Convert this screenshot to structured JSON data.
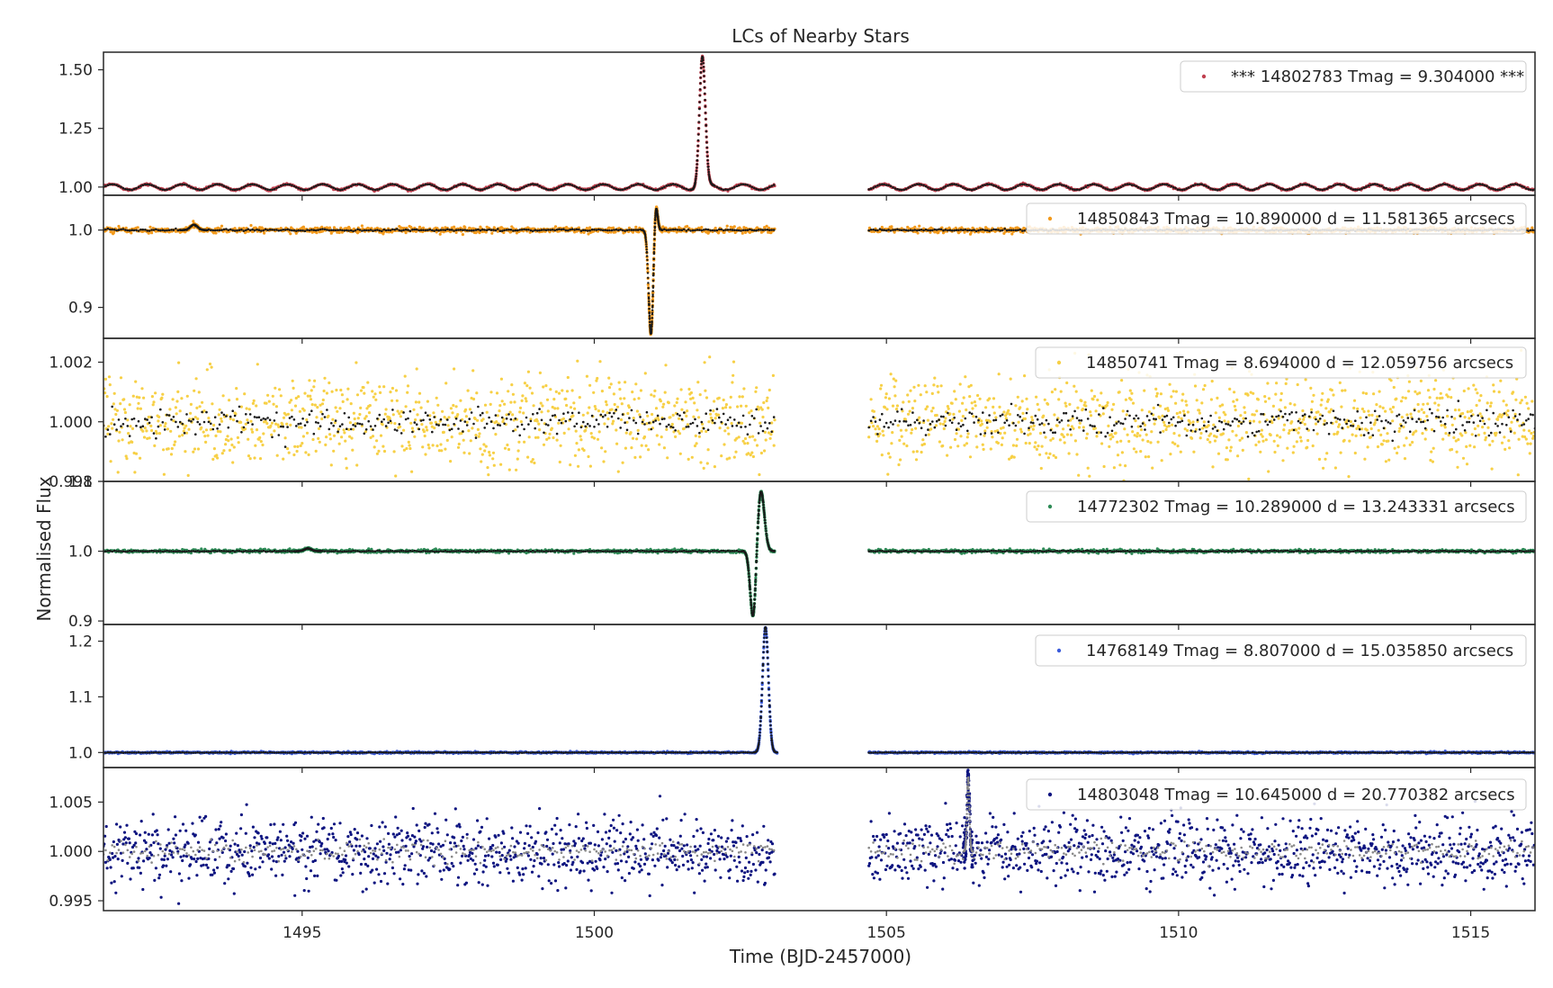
{
  "chart_data": {
    "type": "scatter",
    "title": "LCs of Nearby Stars",
    "xlabel": "Time (BJD-2457000)",
    "ylabel": "Normalised Flux",
    "xlim": [
      1491.6,
      1516.1
    ],
    "x_ticks": [
      1495,
      1500,
      1505,
      1510,
      1515
    ],
    "x_tick_labels": [
      "1495",
      "1500",
      "1505",
      "1510",
      "1515"
    ],
    "data_gap": [
      1503.1,
      1504.7
    ],
    "time_start": 1491.6,
    "time_end": 1516.1,
    "panels": [
      {
        "legend": "*** 14802783  Tmag = 9.304000 ***",
        "color": "#c0404f",
        "binned_color": "#1a1a1a",
        "ylim": [
          0.965,
          1.575
        ],
        "y_ticks": [
          1.0,
          1.25,
          1.5
        ],
        "y_tick_labels": [
          "1.00",
          "1.25",
          "1.50"
        ],
        "baseline": 1.0,
        "noise": 0.002,
        "wave_amplitude": 0.012,
        "wave_period": 0.6,
        "events": [
          {
            "kind": "peak",
            "time": 1501.85,
            "amplitude": 0.55,
            "width": 0.05
          }
        ]
      },
      {
        "legend": "14850843  Tmag = 10.890000   d = 11.581365 arcsecs",
        "color": "#f39a1c",
        "binned_color": "#1a1a1a",
        "ylim": [
          0.86,
          1.045
        ],
        "y_ticks": [
          0.9,
          1.0
        ],
        "y_tick_labels": [
          "0.9",
          "1.0"
        ],
        "baseline": 1.0,
        "noise": 0.0018,
        "wave_amplitude": 0,
        "wave_period": 1,
        "events": [
          {
            "kind": "dip",
            "time": 1500.97,
            "amplitude": -0.135,
            "width": 0.04
          },
          {
            "kind": "peak",
            "time": 1501.05,
            "amplitude": 0.04,
            "width": 0.03
          },
          {
            "kind": "peak",
            "time": 1493.15,
            "amplitude": 0.007,
            "width": 0.06
          }
        ]
      },
      {
        "legend": "14850741  Tmag = 8.694000   d = 12.059756 arcsecs",
        "color": "#f7d046",
        "binned_color": "#1a1a1a",
        "ylim": [
          0.998,
          1.0028
        ],
        "y_ticks": [
          0.998,
          1.0,
          1.002
        ],
        "y_tick_labels": [
          "0.998",
          "1.000",
          "1.002"
        ],
        "baseline": 1.0,
        "noise": 0.00075,
        "wave_amplitude": 0,
        "wave_period": 1,
        "events": []
      },
      {
        "legend": "14772302  Tmag = 10.289000   d = 13.243331 arcsecs",
        "color": "#2e8b57",
        "binned_color": "#1a1a1a",
        "ylim": [
          0.895,
          1.1
        ],
        "y_ticks": [
          0.9,
          1.0,
          1.1
        ],
        "y_tick_labels": [
          "0.9",
          "1.0",
          "1.1"
        ],
        "baseline": 1.0,
        "noise": 0.0012,
        "wave_amplitude": 0,
        "wave_period": 1,
        "events": [
          {
            "kind": "dip",
            "time": 1502.72,
            "amplitude": -0.1,
            "width": 0.05
          },
          {
            "kind": "peak",
            "time": 1502.85,
            "amplitude": 0.088,
            "width": 0.06
          },
          {
            "kind": "peak",
            "time": 1495.1,
            "amplitude": 0.004,
            "width": 0.06
          }
        ]
      },
      {
        "legend": "14768149  Tmag = 8.807000   d = 15.035850 arcsecs",
        "color": "#3b5bdb",
        "binned_color": "#1a1a1a",
        "ylim": [
          0.973,
          1.23
        ],
        "y_ticks": [
          1.0,
          1.1,
          1.2
        ],
        "y_tick_labels": [
          "1.0",
          "1.1",
          "1.2"
        ],
        "baseline": 1.0,
        "noise": 0.0008,
        "wave_amplitude": 0,
        "wave_period": 1,
        "events": [
          {
            "kind": "peak",
            "time": 1502.93,
            "amplitude": 0.225,
            "width": 0.05
          }
        ]
      },
      {
        "legend": "14803048  Tmag = 10.645000   d = 20.770382 arcsecs",
        "color": "#0d1480",
        "binned_color": "#888888",
        "ylim": [
          0.994,
          1.0085
        ],
        "y_ticks": [
          0.995,
          1.0,
          1.005
        ],
        "y_tick_labels": [
          "0.995",
          "1.000",
          "1.005"
        ],
        "baseline": 1.0,
        "noise": 0.0017,
        "wave_amplitude": 0,
        "wave_period": 1,
        "events": [
          {
            "kind": "peak",
            "time": 1506.4,
            "amplitude": 0.0075,
            "width": 0.02
          }
        ]
      }
    ]
  }
}
